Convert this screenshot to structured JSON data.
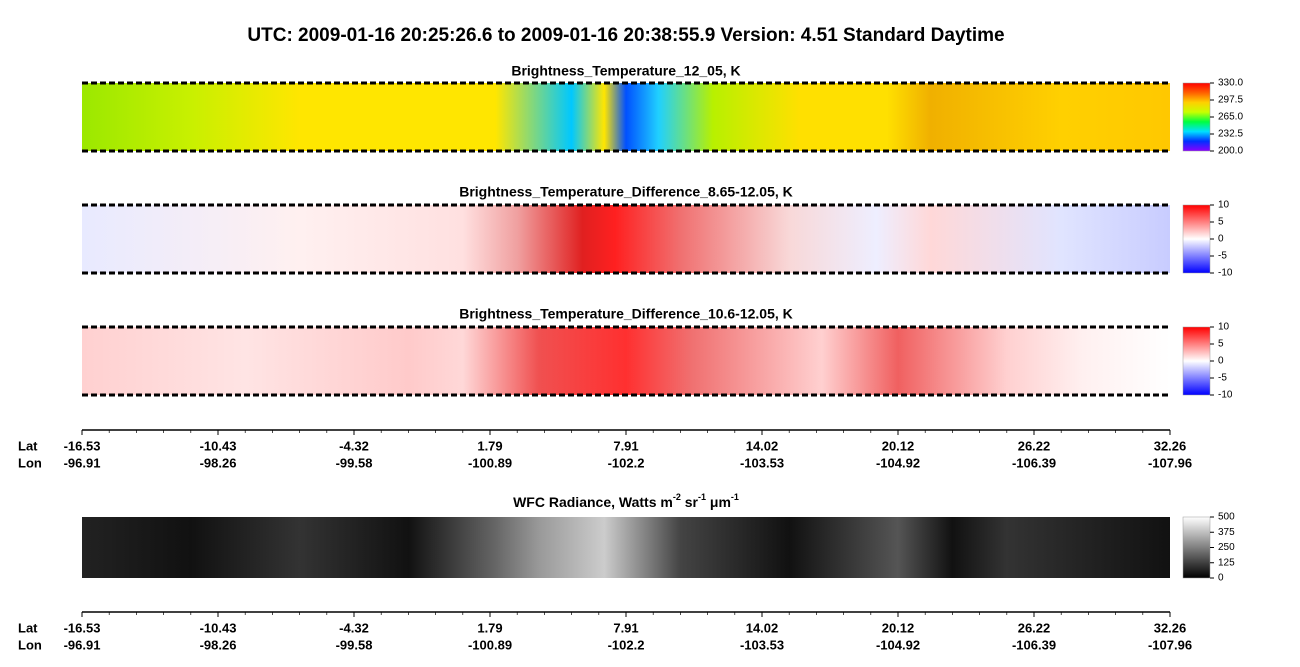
{
  "title": "UTC:  2009-01-16   20:25:26.6  to  2009-01-16   20:38:55.9    Version: 4.51  Standard Daytime",
  "panels": [
    {
      "title": "Brightness_Temperature_12_05, K",
      "colorbar": {
        "lim": [
          200,
          330
        ],
        "ticks": [
          {
            "value": 330,
            "label": "330.0"
          },
          297.5,
          {
            "value": 265,
            "label": "265.0"
          },
          232.5,
          {
            "value": 200,
            "label": "200.0"
          }
        ],
        "colors": [
          "#8a00ff",
          "#0030ff",
          "#00e0ff",
          "#00ff40",
          "#c8ff00",
          "#ffd000",
          "#ff6000",
          "#ff0000"
        ]
      }
    },
    {
      "title": "Brightness_Temperature_Difference_8.65-12.05, K",
      "colorbar": {
        "lim": [
          -10,
          10
        ],
        "ticks": [
          10,
          5,
          0,
          -5,
          -10
        ],
        "colors": [
          "#0000ff",
          "#ffffff",
          "#ff0000"
        ]
      }
    },
    {
      "title": "Brightness_Temperature_Difference_10.6-12.05, K",
      "colorbar": {
        "lim": [
          -10,
          10
        ],
        "ticks": [
          10,
          5,
          0,
          -5,
          -10
        ],
        "colors": [
          "#0000ff",
          "#ffffff",
          "#ff0000"
        ]
      }
    },
    {
      "title_parts": [
        "WFC Radiance, Watts m",
        "-2",
        " sr",
        "-1",
        " μm",
        "-1"
      ],
      "colorbar": {
        "lim": [
          0,
          500
        ],
        "ticks": [
          500,
          375,
          250,
          125,
          0
        ],
        "colors": [
          "#000000",
          "#ffffff"
        ]
      }
    }
  ],
  "axes": [
    {
      "lat_label": "Lat",
      "lon_label": "Lon",
      "lat": [
        -16.53,
        -10.43,
        -4.32,
        1.79,
        7.91,
        14.02,
        20.12,
        26.22,
        32.26
      ],
      "lon": [
        -96.91,
        -98.26,
        -99.58,
        -100.89,
        -102.2,
        -103.53,
        -104.92,
        -106.39,
        -107.96
      ]
    },
    {
      "lat_label": "Lat",
      "lon_label": "Lon",
      "lat": [
        -16.53,
        -10.43,
        -4.32,
        1.79,
        7.91,
        14.02,
        20.12,
        26.22,
        32.26
      ],
      "lon": [
        -96.91,
        -98.26,
        -99.58,
        -100.89,
        -102.2,
        -103.53,
        -104.92,
        -106.39,
        -107.96
      ]
    }
  ]
}
